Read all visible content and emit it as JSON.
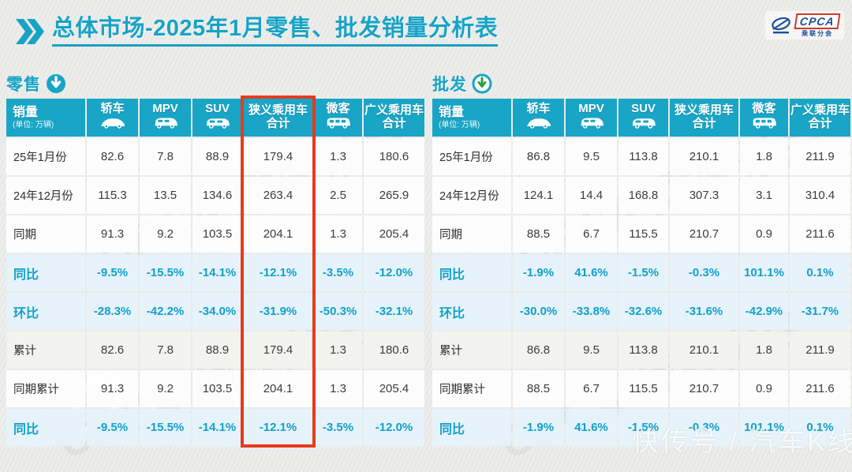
{
  "header": {
    "title": "总体市场-2025年1月零售、批发销量分析表",
    "logo": {
      "brand": "CPCA",
      "subtitle": "乘联分会"
    }
  },
  "columns": {
    "sales_label": "销量",
    "sales_unit": "(单位: 万辆)",
    "cols": [
      {
        "label": "轿车",
        "icon": "sedan-icon"
      },
      {
        "label": "MPV",
        "icon": "mpv-icon"
      },
      {
        "label": "SUV",
        "icon": "suv-icon"
      },
      {
        "label": "狭义乘用车",
        "label2": "合计"
      },
      {
        "label": "微客",
        "icon": "minibus-icon"
      },
      {
        "label": "广义乘用车",
        "label2": "合计"
      }
    ]
  },
  "tables": [
    {
      "name": "零售",
      "arrow_icon": "down-arrow-filled-icon",
      "highlight_column": "狭义乘用车合计",
      "rows": [
        {
          "label": "25年1月份",
          "style": "plain",
          "values": [
            "82.6",
            "7.8",
            "88.9",
            "179.4",
            "1.3",
            "180.6"
          ]
        },
        {
          "label": "24年12月份",
          "style": "plain",
          "values": [
            "115.3",
            "13.5",
            "134.6",
            "263.4",
            "2.5",
            "265.9"
          ]
        },
        {
          "label": "同期",
          "style": "plain",
          "values": [
            "91.3",
            "9.2",
            "103.5",
            "204.1",
            "1.3",
            "205.4"
          ]
        },
        {
          "label": "同比",
          "style": "blue",
          "values": [
            "-9.5%",
            "-15.5%",
            "-14.1%",
            "-12.1%",
            "-3.5%",
            "-12.0%"
          ]
        },
        {
          "label": "环比",
          "style": "blue",
          "values": [
            "-28.3%",
            "-42.2%",
            "-34.0%",
            "-31.9%",
            "-50.3%",
            "-32.1%"
          ]
        },
        {
          "label": "累计",
          "style": "gray",
          "values": [
            "82.6",
            "7.8",
            "88.9",
            "179.4",
            "1.3",
            "180.6"
          ]
        },
        {
          "label": "同期累计",
          "style": "plain",
          "values": [
            "91.3",
            "9.2",
            "103.5",
            "204.1",
            "1.3",
            "205.4"
          ]
        },
        {
          "label": "同比",
          "style": "blue",
          "values": [
            "-9.5%",
            "-15.5%",
            "-14.1%",
            "-12.1%",
            "-3.5%",
            "-12.0%"
          ]
        }
      ]
    },
    {
      "name": "批发",
      "arrow_icon": "down-arrow-ring-icon",
      "highlight_column": null,
      "rows": [
        {
          "label": "25年1月份",
          "style": "plain",
          "values": [
            "86.8",
            "9.5",
            "113.8",
            "210.1",
            "1.8",
            "211.9"
          ]
        },
        {
          "label": "24年12月份",
          "style": "plain",
          "values": [
            "124.1",
            "14.4",
            "168.8",
            "307.3",
            "3.1",
            "310.4"
          ]
        },
        {
          "label": "同期",
          "style": "plain",
          "values": [
            "88.5",
            "6.7",
            "115.5",
            "210.7",
            "0.9",
            "211.6"
          ]
        },
        {
          "label": "同比",
          "style": "blue",
          "values": [
            "-1.9%",
            "41.6%",
            "-1.5%",
            "-0.3%",
            "101.1%",
            "0.1%"
          ]
        },
        {
          "label": "环比",
          "style": "blue",
          "values": [
            "-30.0%",
            "-33.8%",
            "-32.6%",
            "-31.6%",
            "-42.9%",
            "-31.7%"
          ]
        },
        {
          "label": "累计",
          "style": "gray",
          "values": [
            "86.8",
            "9.5",
            "113.8",
            "210.1",
            "1.8",
            "211.9"
          ]
        },
        {
          "label": "同期累计",
          "style": "plain",
          "values": [
            "88.5",
            "6.7",
            "115.5",
            "210.7",
            "0.9",
            "211.6"
          ]
        },
        {
          "label": "同比",
          "style": "blue",
          "values": [
            "-1.9%",
            "41.6%",
            "-1.5%",
            "-0.3%",
            "101.1%",
            "0.1%"
          ]
        }
      ]
    }
  ],
  "watermarks": {
    "bottom_right": "快传号 / 汽车K线",
    "logo_text": "CPCA 乘联分会"
  },
  "colors": {
    "accent_cyan": "#17a3c6",
    "header_bg": "#18a5c6",
    "percent_text": "#12a0cb",
    "percent_row_bg": "#e5f3fa",
    "highlight_red": "#e63a1e",
    "logo_blue": "#1d4f9e",
    "logo_red": "#cf3a2e",
    "arrow_green": "#2f9e44"
  },
  "chart_data": [
    {
      "type": "table",
      "title": "零售 (单位: 万辆)",
      "columns": [
        "销量",
        "轿车",
        "MPV",
        "SUV",
        "狭义乘用车合计",
        "微客",
        "广义乘用车合计"
      ],
      "rows": [
        [
          "25年1月份",
          82.6,
          7.8,
          88.9,
          179.4,
          1.3,
          180.6
        ],
        [
          "24年12月份",
          115.3,
          13.5,
          134.6,
          263.4,
          2.5,
          265.9
        ],
        [
          "同期",
          91.3,
          9.2,
          103.5,
          204.1,
          1.3,
          205.4
        ],
        [
          "同比",
          "-9.5%",
          "-15.5%",
          "-14.1%",
          "-12.1%",
          "-3.5%",
          "-12.0%"
        ],
        [
          "环比",
          "-28.3%",
          "-42.2%",
          "-34.0%",
          "-31.9%",
          "-50.3%",
          "-32.1%"
        ],
        [
          "累计",
          82.6,
          7.8,
          88.9,
          179.4,
          1.3,
          180.6
        ],
        [
          "同期累计",
          91.3,
          9.2,
          103.5,
          204.1,
          1.3,
          205.4
        ],
        [
          "同比",
          "-9.5%",
          "-15.5%",
          "-14.1%",
          "-12.1%",
          "-3.5%",
          "-12.0%"
        ]
      ]
    },
    {
      "type": "table",
      "title": "批发 (单位: 万辆)",
      "columns": [
        "销量",
        "轿车",
        "MPV",
        "SUV",
        "狭义乘用车合计",
        "微客",
        "广义乘用车合计"
      ],
      "rows": [
        [
          "25年1月份",
          86.8,
          9.5,
          113.8,
          210.1,
          1.8,
          211.9
        ],
        [
          "24年12月份",
          124.1,
          14.4,
          168.8,
          307.3,
          3.1,
          310.4
        ],
        [
          "同期",
          88.5,
          6.7,
          115.5,
          210.7,
          0.9,
          211.6
        ],
        [
          "同比",
          "-1.9%",
          "41.6%",
          "-1.5%",
          "-0.3%",
          "101.1%",
          "0.1%"
        ],
        [
          "环比",
          "-30.0%",
          "-33.8%",
          "-32.6%",
          "-31.6%",
          "-42.9%",
          "-31.7%"
        ],
        [
          "累计",
          86.8,
          9.5,
          113.8,
          210.1,
          1.8,
          211.9
        ],
        [
          "同期累计",
          88.5,
          6.7,
          115.5,
          210.7,
          0.9,
          211.6
        ],
        [
          "同比",
          "-1.9%",
          "41.6%",
          "-1.5%",
          "-0.3%",
          "101.1%",
          "0.1%"
        ]
      ]
    }
  ]
}
